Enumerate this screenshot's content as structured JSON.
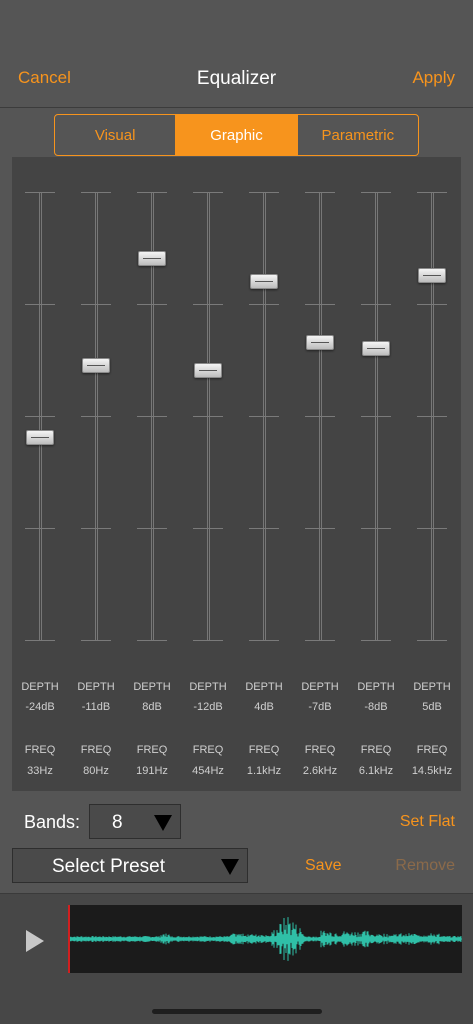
{
  "header": {
    "title": "Equalizer",
    "cancel_label": "Cancel",
    "apply_label": "Apply"
  },
  "tabs": [
    {
      "label": "Visual",
      "active": false
    },
    {
      "label": "Graphic",
      "active": true
    },
    {
      "label": "Parametric",
      "active": false
    }
  ],
  "eq": {
    "depth_label": "DEPTH",
    "freq_label": "FREQ",
    "range_db": [
      -60,
      20
    ],
    "bands": [
      {
        "depth": "-24dB",
        "freq": "33Hz",
        "level_db": -24
      },
      {
        "depth": "-11dB",
        "freq": "80Hz",
        "level_db": -11
      },
      {
        "depth": "8dB",
        "freq": "191Hz",
        "level_db": 8
      },
      {
        "depth": "-12dB",
        "freq": "454Hz",
        "level_db": -12
      },
      {
        "depth": "4dB",
        "freq": "1.1kHz",
        "level_db": 4
      },
      {
        "depth": "-7dB",
        "freq": "2.6kHz",
        "level_db": -7
      },
      {
        "depth": "-8dB",
        "freq": "6.1kHz",
        "level_db": -8
      },
      {
        "depth": "5dB",
        "freq": "14.5kHz",
        "level_db": 5
      }
    ]
  },
  "controls": {
    "bands_label": "Bands:",
    "bands_value": "8",
    "set_flat_label": "Set Flat",
    "preset_label": "Select Preset",
    "save_label": "Save",
    "remove_label": "Remove"
  },
  "player": {
    "icon": "play-icon"
  },
  "colors": {
    "accent": "#f7941d",
    "waveform": "#2fbfa7",
    "playhead": "#d21f1f",
    "background": "#555555",
    "panel": "#444444"
  }
}
